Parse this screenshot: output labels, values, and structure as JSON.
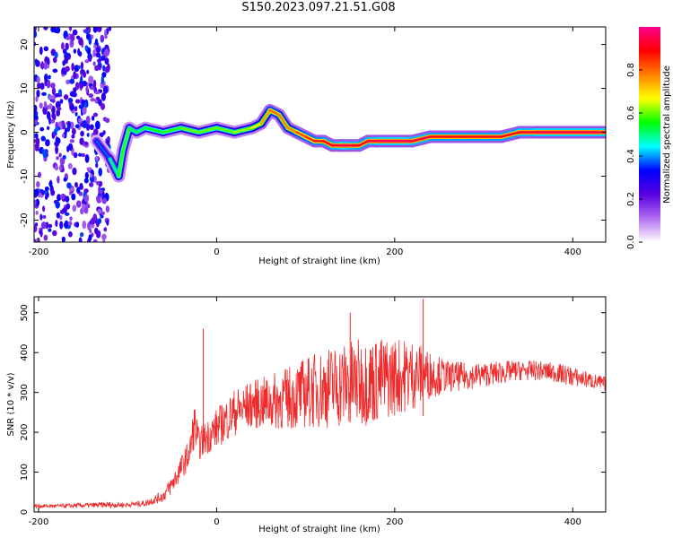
{
  "title": "S150.2023.097.21.51.G08",
  "chart_data": [
    {
      "type": "heatmap",
      "xlabel": "Height of straight line (km)",
      "ylabel": "Frequency (Hz)",
      "xlim": [
        -205,
        437
      ],
      "ylim": [
        -25,
        24
      ],
      "xticks": [
        -200,
        0,
        200,
        400
      ],
      "yticks": [
        -20,
        -10,
        0,
        10,
        20
      ],
      "grid": false,
      "colorbar": {
        "label": "Normalized spectral amplitude",
        "range": [
          0,
          1
        ],
        "ticks": [
          0.0,
          0.2,
          0.4,
          0.6,
          0.8
        ],
        "colors": [
          "#ffffff",
          "#b06cf0",
          "#5a00e0",
          "#0000ff",
          "#00ffff",
          "#00ff00",
          "#ffff00",
          "#ff8000",
          "#ff0000",
          "#ff0090"
        ]
      },
      "ridge": {
        "x": [
          -135,
          -120,
          -110,
          -105,
          -98,
          -90,
          -80,
          -60,
          -40,
          -20,
          0,
          20,
          40,
          50,
          60,
          70,
          80,
          90,
          100,
          110,
          120,
          130,
          140,
          150,
          160,
          170,
          180,
          200,
          220,
          240,
          260,
          280,
          300,
          320,
          340,
          360,
          380,
          400,
          420,
          437
        ],
        "y": [
          -2,
          -6,
          -10,
          -4,
          1,
          0,
          1,
          0,
          1,
          0,
          1,
          0,
          1,
          2,
          5,
          4,
          1,
          0,
          -1,
          -2,
          -2,
          -3,
          -3,
          -3,
          -3,
          -2,
          -2,
          -2,
          -2,
          -1,
          -1,
          -1,
          -1,
          -1,
          0,
          0,
          0,
          0,
          0,
          0
        ],
        "amplitude": [
          0.3,
          0.45,
          0.55,
          0.6,
          0.55,
          0.5,
          0.55,
          0.55,
          0.6,
          0.6,
          0.6,
          0.6,
          0.65,
          0.7,
          0.8,
          0.8,
          0.75,
          0.8,
          0.85,
          0.85,
          0.9,
          0.9,
          0.95,
          0.95,
          0.9,
          0.9,
          0.95,
          0.95,
          0.95,
          0.9,
          0.9,
          0.9,
          0.9,
          0.9,
          0.9,
          0.95,
          0.95,
          0.95,
          0.95,
          0.95
        ]
      },
      "noise_region": {
        "x": [
          -205,
          -120
        ],
        "amplitude": 0.25
      }
    },
    {
      "type": "line",
      "xlabel": "Height of straight line (km)",
      "ylabel": "SNR (10 * v/v)",
      "xlim": [
        -205,
        437
      ],
      "ylim": [
        0,
        540
      ],
      "xticks": [
        -200,
        0,
        200,
        400
      ],
      "yticks": [
        0,
        100,
        200,
        300,
        400,
        500
      ],
      "grid": false,
      "color": "#ee2a2a",
      "series": [
        {
          "x": [
            -205,
            -180,
            -160,
            -140,
            -120,
            -100,
            -80,
            -60,
            -50,
            -40,
            -30,
            -25,
            -20,
            0,
            20,
            40,
            60,
            80,
            100,
            120,
            140,
            160,
            180,
            200,
            220,
            240,
            260,
            280,
            300,
            320,
            340,
            360,
            380,
            400,
            420,
            437
          ],
          "y": [
            15,
            15,
            16,
            17,
            18,
            18,
            22,
            40,
            70,
            110,
            150,
            220,
            170,
            210,
            250,
            270,
            275,
            285,
            300,
            310,
            320,
            325,
            330,
            340,
            345,
            345,
            340,
            340,
            345,
            350,
            355,
            355,
            350,
            340,
            330,
            320
          ],
          "spread": [
            5,
            5,
            6,
            6,
            8,
            6,
            8,
            15,
            25,
            30,
            40,
            60,
            40,
            50,
            60,
            60,
            70,
            80,
            90,
            100,
            110,
            110,
            110,
            100,
            90,
            60,
            40,
            35,
            30,
            30,
            25,
            25,
            25,
            25,
            20,
            20
          ]
        }
      ],
      "spikes": [
        {
          "x": -15,
          "y": 460
        },
        {
          "x": 150,
          "y": 500
        },
        {
          "x": 232,
          "y": 535
        }
      ]
    }
  ]
}
